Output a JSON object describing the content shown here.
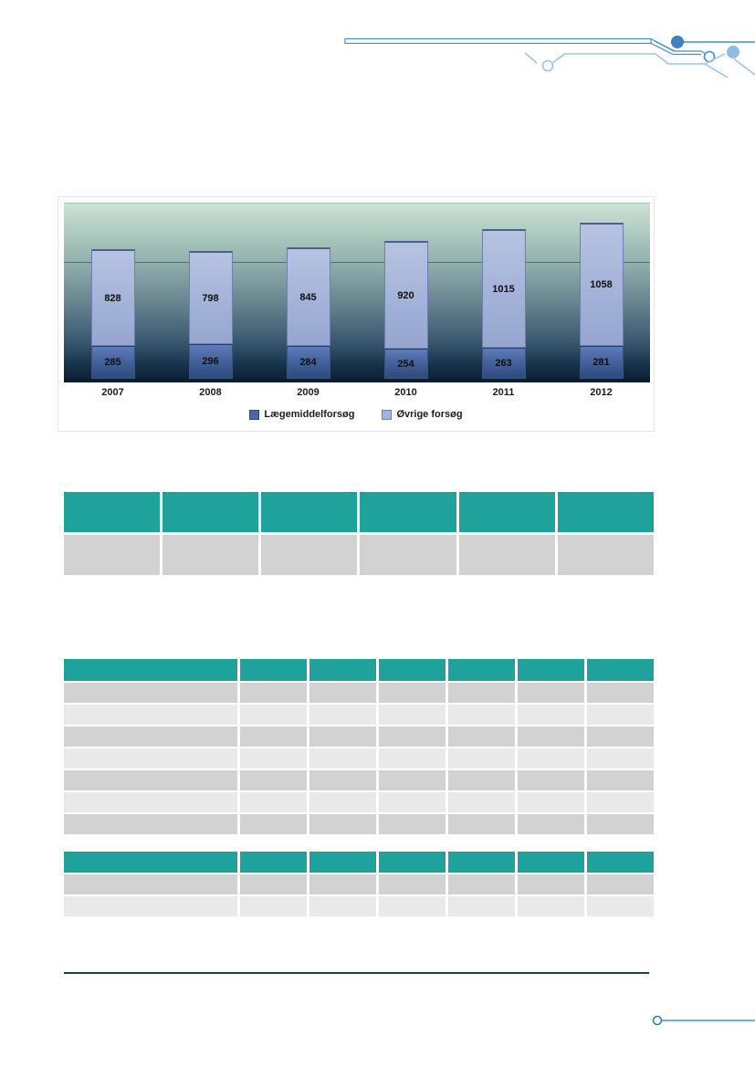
{
  "chart_data": {
    "type": "bar",
    "stacked": true,
    "categories": [
      "2007",
      "2008",
      "2009",
      "2010",
      "2011",
      "2012"
    ],
    "series": [
      {
        "name": "Lægemiddelforsøg",
        "values": [
          285,
          296,
          284,
          254,
          263,
          281
        ],
        "color": "#4a68a8",
        "swatch_border": "#2f4a7d"
      },
      {
        "name": "Øvrige forsøg",
        "values": [
          828,
          798,
          845,
          920,
          1015,
          1058
        ],
        "color": "#a6b4da",
        "swatch_border": "#6d80b2"
      }
    ],
    "totals": [
      1113,
      1094,
      1129,
      1174,
      1278,
      1339
    ],
    "title": "",
    "xlabel": "",
    "ylabel": "",
    "ylim": [
      0,
      1500
    ],
    "gridline_values": [
      1000
    ],
    "legend_position": "bottom",
    "data_labels": true,
    "plot_background": "gradient green-to-dark-navy"
  },
  "tables": {
    "summary": {
      "header_cells": [
        "",
        "",
        "",
        "",
        "",
        ""
      ],
      "rows": [
        [
          "",
          "",
          "",
          "",
          "",
          ""
        ]
      ]
    },
    "detail": {
      "header_cells": [
        "",
        "",
        "",
        "",
        "",
        "",
        ""
      ],
      "rows": [
        [
          "",
          "",
          "",
          "",
          "",
          "",
          ""
        ],
        [
          "",
          "",
          "",
          "",
          "",
          "",
          ""
        ],
        [
          "",
          "",
          "",
          "",
          "",
          "",
          ""
        ],
        [
          "",
          "",
          "",
          "",
          "",
          "",
          ""
        ],
        [
          "",
          "",
          "",
          "",
          "",
          "",
          ""
        ],
        [
          "",
          "",
          "",
          "",
          "",
          "",
          ""
        ],
        [
          "",
          "",
          "",
          "",
          "",
          "",
          ""
        ]
      ]
    },
    "totals": {
      "header_cells": [
        "",
        "",
        "",
        "",
        "",
        "",
        ""
      ],
      "rows": [
        [
          "",
          "",
          "",
          "",
          "",
          "",
          ""
        ],
        [
          "",
          "",
          "",
          "",
          "",
          "",
          ""
        ]
      ]
    }
  },
  "colors": {
    "table_header_teal": "#1fa29b",
    "row_dark": "#d2d2d2",
    "row_light": "#e9e9e9",
    "divider_rule": "#1d3d50",
    "deco_blue": "#4a8ec6",
    "deco_blue_light": "#9dc3e6",
    "deco_fill_dark": "#3f80bd",
    "deco_fill_light": "#8fbce0"
  }
}
